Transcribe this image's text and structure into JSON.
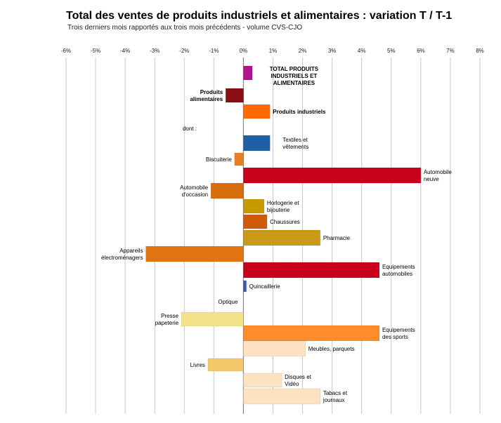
{
  "title": "Total des ventes de produits industriels et alimentaires : variation T / T-1",
  "subtitle": "Trois derniers mois rapportés aux trois mois précédents - volume CVS-CJO",
  "chart_data": {
    "type": "bar",
    "orientation": "horizontal",
    "title": "Total des ventes de produits industriels et alimentaires : variation T / T-1",
    "subtitle": "Trois derniers mois rapportés aux trois mois précédents - volume CVS-CJO",
    "xlim": [
      -6,
      8
    ],
    "x_ticks": [
      "-6%",
      "-5%",
      "-4%",
      "-3%",
      "-2%",
      "-1%",
      "0%",
      "1%",
      "2%",
      "3%",
      "4%",
      "5%",
      "6%",
      "7%",
      "8%"
    ],
    "grid": true,
    "categories": [
      "TOTAL PRODUITS INDUSTRIELS ET ALIMENTAIRES",
      "Produits alimentaires",
      "Produits industriels",
      "dont :",
      "Textiles et vêtements",
      "Biscuiterie",
      "Automobile neuve",
      "Automobile d'occasion",
      "Horlogerie et bijouterie",
      "Chaussures",
      "Pharmacie",
      "Appareils électroménagers",
      "Equipements automobiles",
      "Quincaillerie",
      "Optique",
      "Presse papeterie",
      "Equipements des sports",
      "Meubles, parquets",
      "Livres",
      "Disques et Vidéo",
      "Tabacs et journaux"
    ],
    "values": [
      0.3,
      -0.6,
      0.9,
      null,
      0.9,
      -0.3,
      6.0,
      -1.1,
      0.7,
      0.8,
      2.6,
      -3.3,
      4.6,
      0.1,
      0,
      -2.1,
      4.6,
      2.1,
      -1.2,
      1.3,
      2.6
    ],
    "colors": [
      "#b0138c",
      "#8b0f12",
      "#ff6a00",
      null,
      "#1f5fa6",
      "#e67e22",
      "#c8001c",
      "#d96d0e",
      "#c79a00",
      "#cf5a0c",
      "#c99a1a",
      "#e07413",
      "#c8001c",
      "#3b5aa6",
      "#bfbfbf",
      "#f2e38a",
      "#ff8c2a",
      "#fde2c2",
      "#f3c86a",
      "#fde2c2",
      "#fde2c2"
    ]
  }
}
